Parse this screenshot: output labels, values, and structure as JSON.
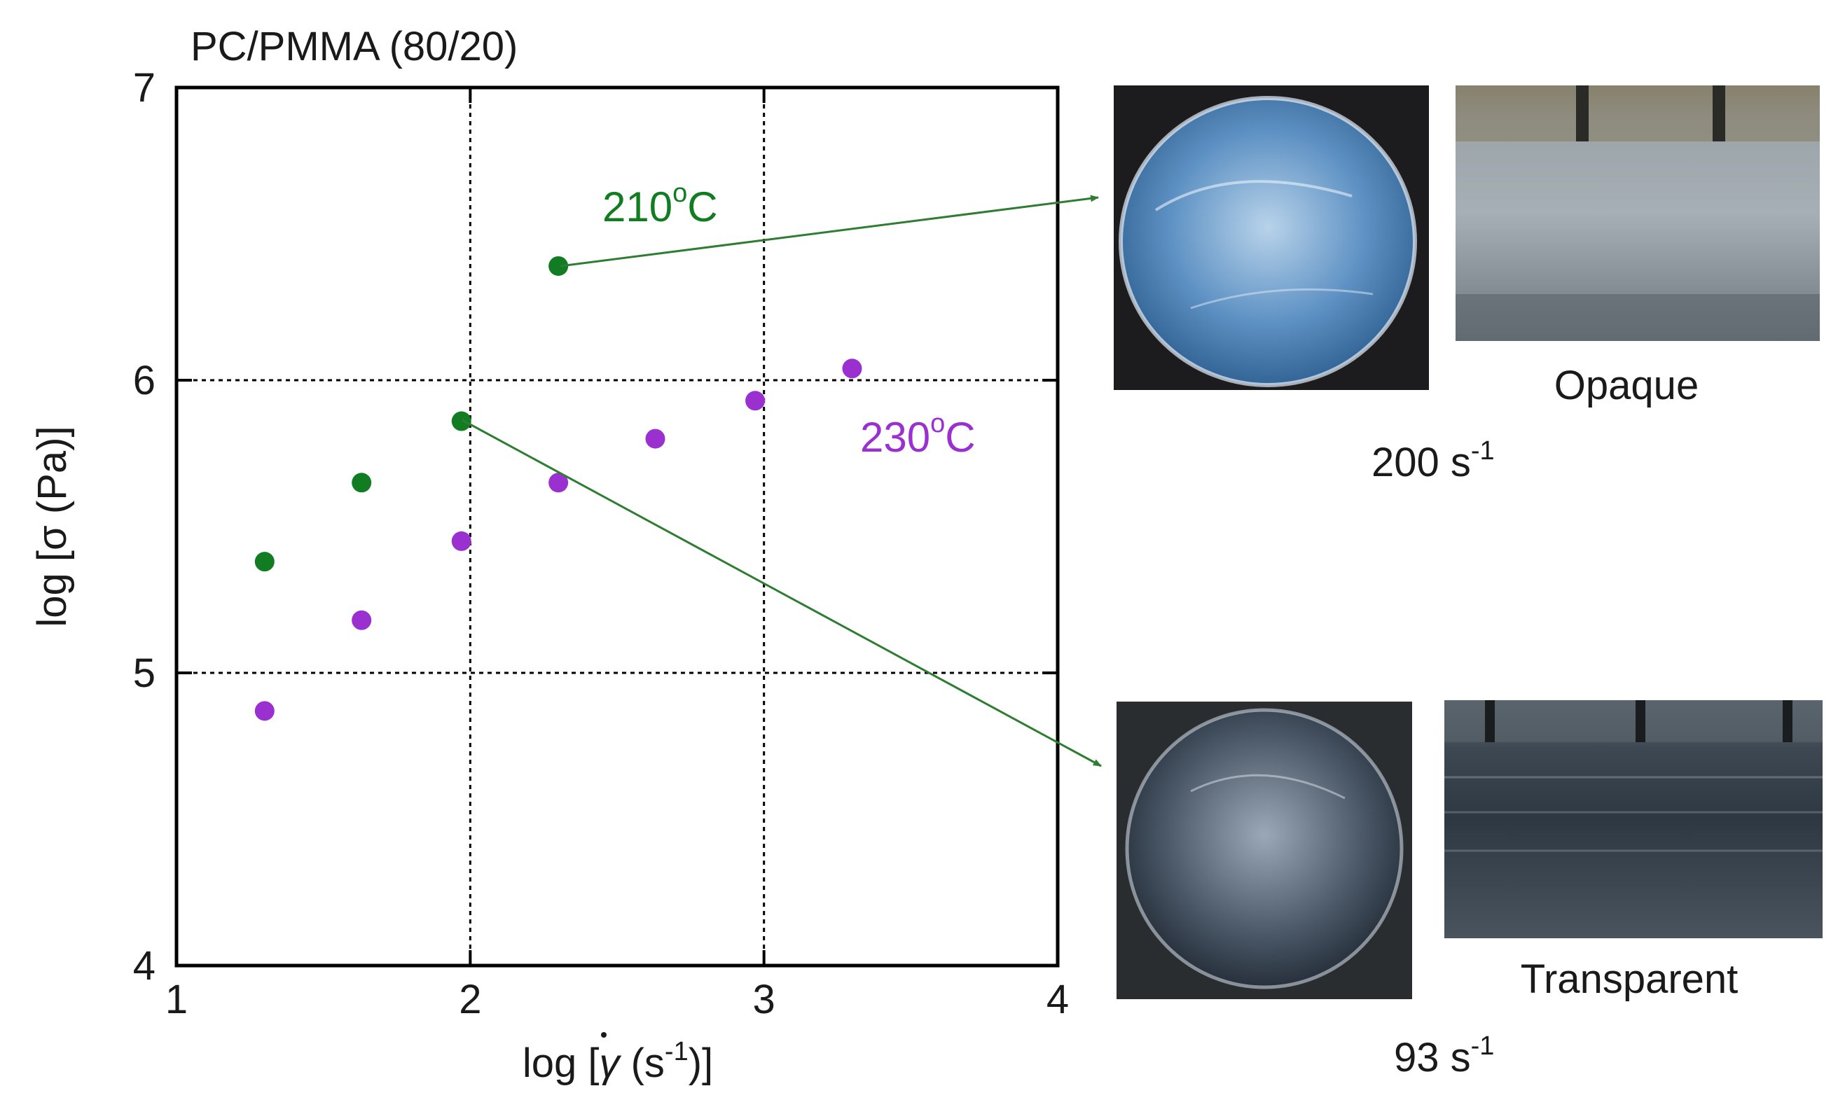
{
  "chart_data": {
    "type": "scatter",
    "title": "PC/PMMA (80/20)",
    "xlabel": {
      "pre": "log [",
      "gamma": "γ",
      "unit": " (s",
      "exp": "-1",
      "post": ")]"
    },
    "ylabel": "log [σ (Pa)]",
    "xlim": [
      1,
      4
    ],
    "ylim": [
      4,
      7
    ],
    "xticks": [
      "1",
      "2",
      "3",
      "4"
    ],
    "yticks": [
      "4",
      "5",
      "6",
      "7"
    ],
    "grid": true,
    "series": [
      {
        "name": "210°C",
        "color": "#127c22",
        "x": [
          1.3,
          1.63,
          1.97,
          2.3
        ],
        "y": [
          5.38,
          5.65,
          5.86,
          6.39
        ]
      },
      {
        "name": "230°C",
        "color": "#9b30d0",
        "x": [
          1.3,
          1.63,
          1.97,
          2.3,
          2.63,
          2.97,
          3.3
        ],
        "y": [
          4.87,
          5.18,
          5.45,
          5.65,
          5.8,
          5.93,
          6.04
        ]
      }
    ],
    "annotations": [
      {
        "text": "210",
        "sup": "o",
        "post": "C",
        "color": "#127c22"
      },
      {
        "text": "230",
        "sup": "o",
        "post": "C",
        "color": "#9b30d0"
      }
    ]
  },
  "photos": {
    "top": {
      "caption": "Opaque",
      "rate": "200 s",
      "rate_exp": "-1"
    },
    "bottom": {
      "caption": "Transparent",
      "rate": "93 s",
      "rate_exp": "-1"
    }
  },
  "colors": {
    "arrow": "#2e7d32",
    "axis": "#000000"
  }
}
